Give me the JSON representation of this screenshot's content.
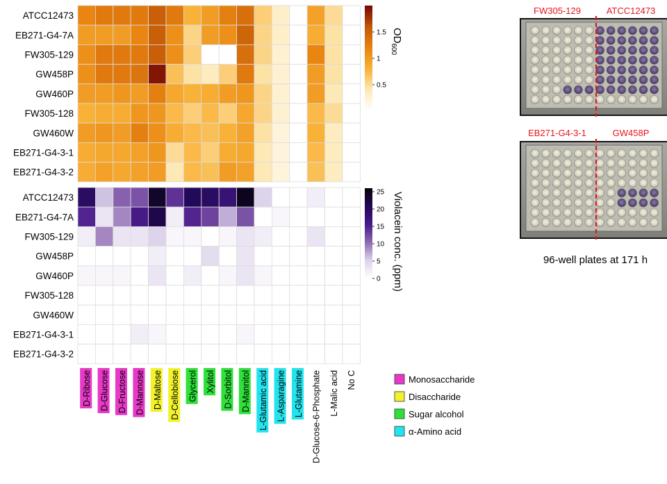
{
  "strains": [
    "ATCC12473",
    "EB271-G4-7A",
    "FW305-129",
    "GW458P",
    "GW460P",
    "FW305-128",
    "GW460W",
    "EB271-G4-3-1",
    "EB271-G4-3-2"
  ],
  "sources": [
    "D-Ribose",
    "D-Glucose",
    "D-Fructose",
    "D-Mannose",
    "D-Maltose",
    "D-Cellobiose",
    "Glycerol",
    "Xylitol",
    "D-Sorbitol",
    "D-Mannitol",
    "L-Glutamic acid",
    "L-Asparagine",
    "L-Glutamine",
    "D-Glucose-6-Phosphate",
    "L-Malic acid",
    "No C"
  ],
  "source_class": [
    "mono",
    "mono",
    "mono",
    "mono",
    "di",
    "di",
    "alc",
    "alc",
    "alc",
    "alc",
    "amino",
    "amino",
    "amino",
    "none",
    "none",
    "none"
  ],
  "classes": {
    "mono": {
      "label": "Monosaccharide",
      "color": "#e838c8"
    },
    "di": {
      "label": "Disaccharide",
      "color": "#f2f22a"
    },
    "alc": {
      "label": "Sugar alcohol",
      "color": "#2fe03a"
    },
    "amino": {
      "label": "α-Amino acid",
      "color": "#22e4ee"
    }
  },
  "chart_data": [
    {
      "type": "heatmap",
      "name": "od600",
      "colorbar_label": "OD",
      "colorbar_sub": "600",
      "colorbar_ticks": [
        0.5,
        1,
        1.5
      ],
      "colorbar_tick_labels": [
        "0.5",
        "1",
        "1.5"
      ],
      "vmin": 0,
      "vmax": 2.0,
      "colors": [
        "#ffffff",
        "#fde9b6",
        "#f9b238",
        "#e98510",
        "#c45a07",
        "#7a0b05"
      ],
      "values": [
        [
          1.2,
          1.3,
          1.3,
          1.3,
          1.55,
          1.3,
          0.8,
          1.0,
          1.25,
          1.4,
          0.6,
          0.3,
          0.0,
          0.95,
          0.5,
          null
        ],
        [
          1.0,
          1.0,
          1.0,
          1.2,
          1.55,
          1.1,
          0.55,
          1.0,
          1.1,
          1.5,
          0.55,
          0.3,
          0.0,
          0.85,
          0.45,
          null
        ],
        [
          1.1,
          1.3,
          1.3,
          1.3,
          1.55,
          1.1,
          0.6,
          0.0,
          0.0,
          1.4,
          0.55,
          0.25,
          0.0,
          1.2,
          0.45,
          null
        ],
        [
          1.1,
          1.3,
          1.3,
          1.35,
          1.95,
          0.7,
          0.45,
          0.35,
          0.6,
          1.3,
          0.45,
          0.25,
          0.0,
          1.0,
          0.45,
          null
        ],
        [
          1.0,
          1.0,
          1.05,
          1.0,
          1.25,
          0.9,
          0.8,
          0.85,
          1.0,
          1.05,
          0.55,
          0.25,
          0.0,
          1.0,
          0.4,
          null
        ],
        [
          0.8,
          0.85,
          0.85,
          1.05,
          1.05,
          0.75,
          0.6,
          0.75,
          0.6,
          0.9,
          0.55,
          0.25,
          0.0,
          0.75,
          0.5,
          null
        ],
        [
          1.0,
          1.05,
          1.0,
          1.25,
          1.1,
          0.85,
          0.75,
          0.7,
          0.8,
          0.95,
          0.45,
          0.2,
          0.0,
          0.8,
          0.35,
          null
        ],
        [
          0.85,
          0.9,
          0.9,
          0.95,
          1.05,
          0.5,
          0.75,
          0.6,
          0.85,
          0.9,
          0.4,
          0.2,
          0.0,
          0.75,
          0.35,
          null
        ],
        [
          0.85,
          0.95,
          0.9,
          0.95,
          1.0,
          0.4,
          0.75,
          0.7,
          1.0,
          0.95,
          0.4,
          0.2,
          0.0,
          0.7,
          0.35,
          null
        ]
      ]
    },
    {
      "type": "heatmap",
      "name": "violacein",
      "colorbar_label": "Violacein conc. (ppm)",
      "colorbar_ticks": [
        0,
        5,
        10,
        15,
        20,
        25
      ],
      "colorbar_tick_labels": [
        "0",
        "5",
        "10",
        "15",
        "20",
        "25"
      ],
      "vmin": 0,
      "vmax": 26,
      "colors": [
        "#ffffff",
        "#dcd2ea",
        "#8f6ab2",
        "#4a1b8a",
        "#24095c",
        "#08040f"
      ],
      "values": [
        [
          20,
          6,
          11,
          12,
          24,
          14,
          21,
          20,
          18,
          25,
          5,
          0,
          0,
          2,
          0,
          0
        ],
        [
          15,
          3,
          9,
          16,
          22,
          2,
          15,
          13,
          7,
          12,
          0,
          1,
          0,
          0,
          0,
          0
        ],
        [
          2,
          9,
          3,
          3,
          5,
          1,
          1,
          0,
          1,
          3,
          2,
          0,
          0,
          3,
          0,
          0
        ],
        [
          0,
          0,
          0,
          0,
          2,
          0,
          0,
          4,
          0,
          3,
          0,
          0,
          0,
          0,
          0,
          0
        ],
        [
          1,
          1,
          1,
          0,
          3,
          0,
          2,
          0,
          1,
          3,
          1,
          0,
          0,
          0,
          0,
          0
        ],
        [
          0,
          0,
          0,
          0,
          0,
          0,
          0,
          0,
          0,
          0,
          0,
          0,
          0,
          0,
          0,
          0
        ],
        [
          0,
          0,
          0,
          0,
          0,
          0,
          0,
          0,
          0,
          0,
          0,
          0,
          0,
          0,
          0,
          0
        ],
        [
          0,
          0,
          0,
          2,
          1,
          0,
          0,
          0,
          0,
          1,
          0,
          0,
          0,
          0,
          0,
          0
        ],
        [
          0,
          0,
          0,
          0,
          0,
          0,
          0,
          0,
          0,
          0,
          0,
          0,
          0,
          0,
          0,
          0
        ]
      ]
    }
  ],
  "plates": [
    {
      "left": "FW305-129",
      "right": "ATCC12473"
    },
    {
      "left": "EB271-G4-3-1",
      "right": "GW458P"
    }
  ],
  "caption": "96-well plates at 171 h"
}
